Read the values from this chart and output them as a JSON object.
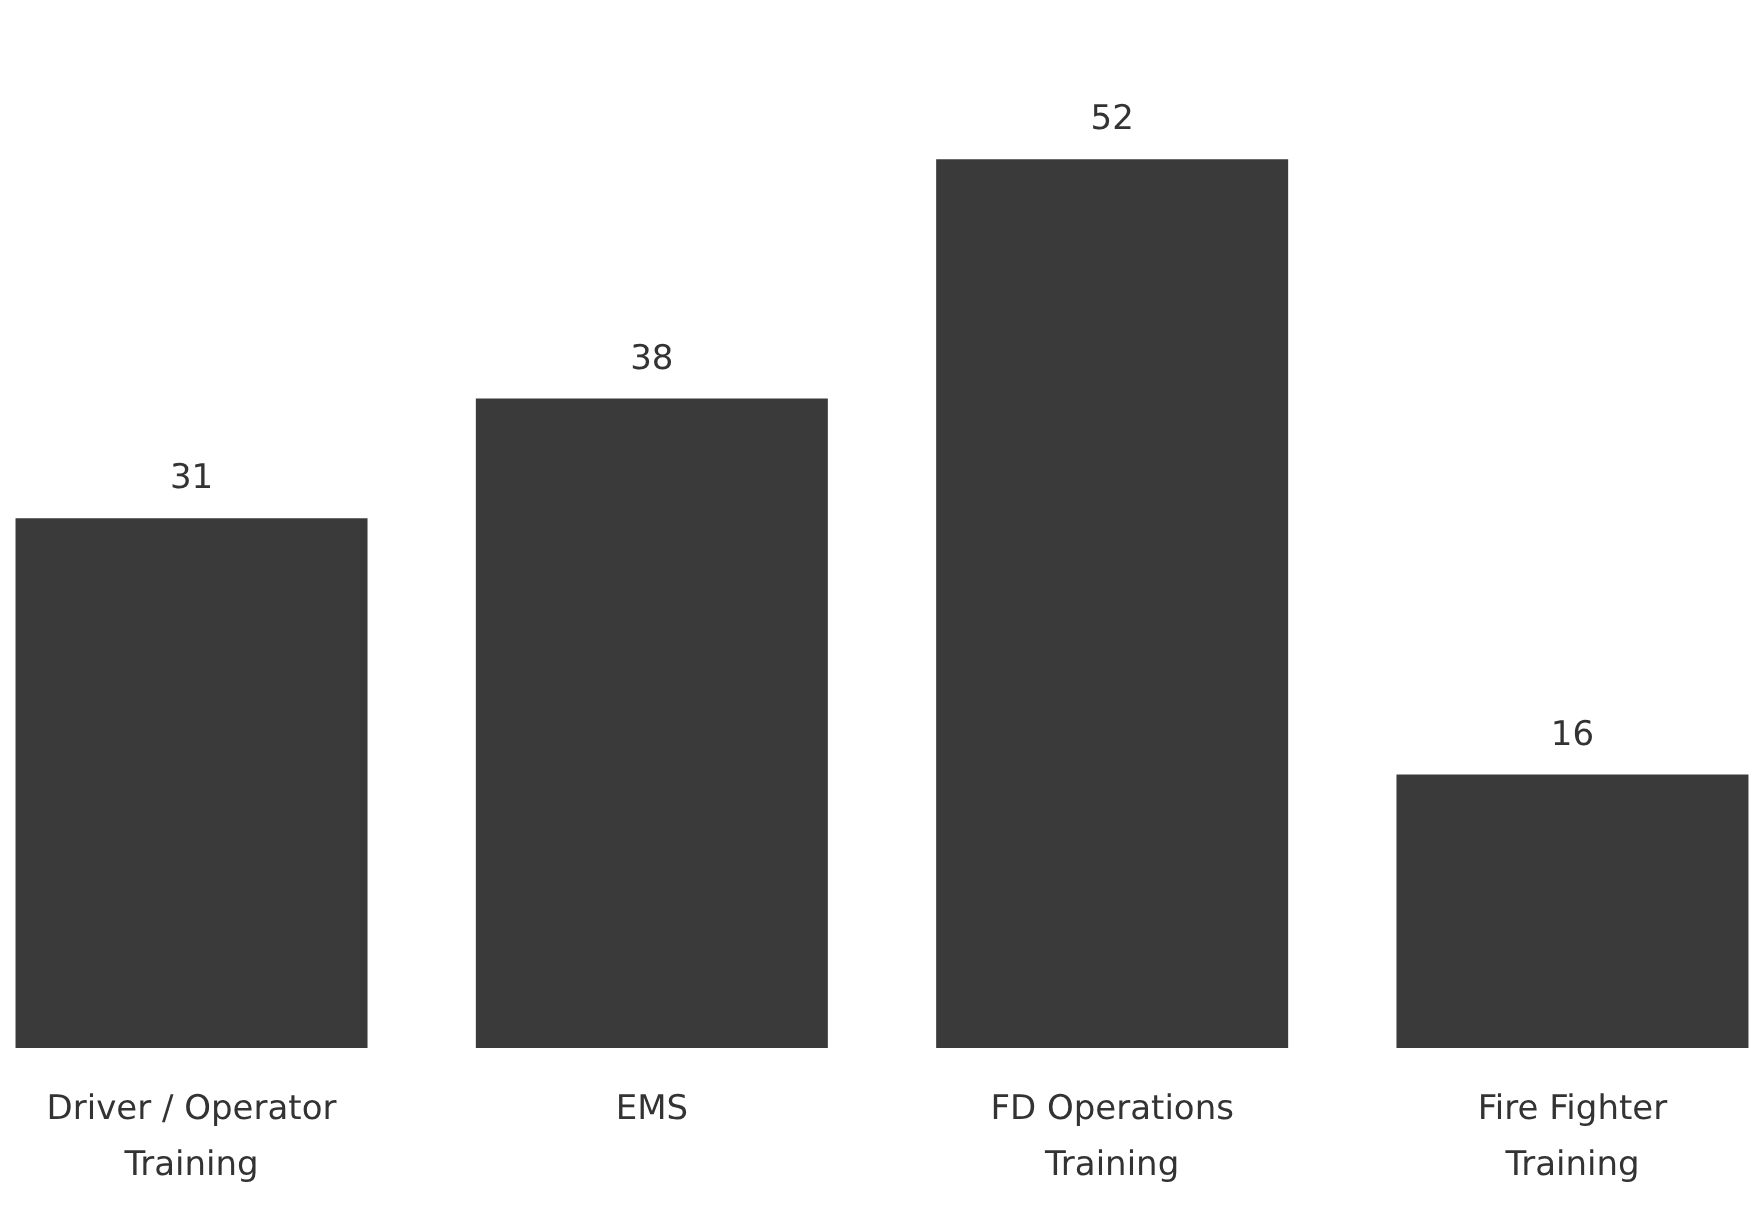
{
  "chart_data": {
    "type": "bar",
    "categories": [
      "Driver / Operator Training",
      "EMS",
      "FD Operations Training",
      "Fire Fighter Training"
    ],
    "values": [
      31,
      38,
      52,
      16
    ],
    "color": "#3a3a3a",
    "data_labels": true
  }
}
